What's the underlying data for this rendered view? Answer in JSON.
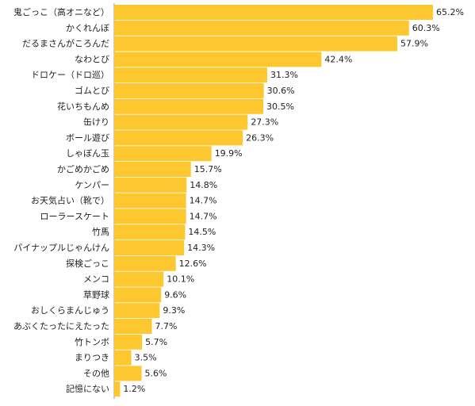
{
  "chart_data": {
    "type": "bar",
    "orientation": "horizontal",
    "title": "",
    "xlabel": "",
    "ylabel": "",
    "categories": [
      "鬼ごっこ（高オニなど）",
      "かくれんぼ",
      "だるまさんがころんだ",
      "なわとび",
      "ドロケー（ドロ巡）",
      "ゴムとび",
      "花いちもんめ",
      "缶けり",
      "ボール遊び",
      "しゃぼん玉",
      "かごめかごめ",
      "ケンパー",
      "お天気占い（靴で）",
      "ローラースケート",
      "竹馬",
      "パイナップルじゃんけん",
      "探検ごっこ",
      "メンコ",
      "草野球",
      "おしくらまんじゅう",
      "あぶくたったにえたった",
      "竹トンボ",
      "まりつき",
      "その他",
      "記憶にない"
    ],
    "values": [
      65.2,
      60.3,
      57.9,
      42.4,
      31.3,
      30.6,
      30.5,
      27.3,
      26.3,
      19.9,
      15.7,
      14.8,
      14.7,
      14.7,
      14.5,
      14.3,
      12.6,
      10.1,
      9.6,
      9.3,
      7.7,
      5.7,
      3.5,
      5.6,
      1.2
    ],
    "value_labels": [
      "65.2%",
      "60.3%",
      "57.9%",
      "42.4%",
      "31.3%",
      "30.6%",
      "30.5%",
      "27.3%",
      "26.3%",
      "19.9%",
      "15.7%",
      "14.8%",
      "14.7%",
      "14.7%",
      "14.5%",
      "14.3%",
      "12.6%",
      "10.1%",
      "9.6%",
      "9.3%",
      "7.7%",
      "5.7%",
      "3.5%",
      "5.6%",
      "1.2%"
    ],
    "xlim": [
      0,
      65.2
    ],
    "grid": false,
    "legend": "none",
    "bar_color": "#FDC82F",
    "axis_color": "#999999"
  }
}
